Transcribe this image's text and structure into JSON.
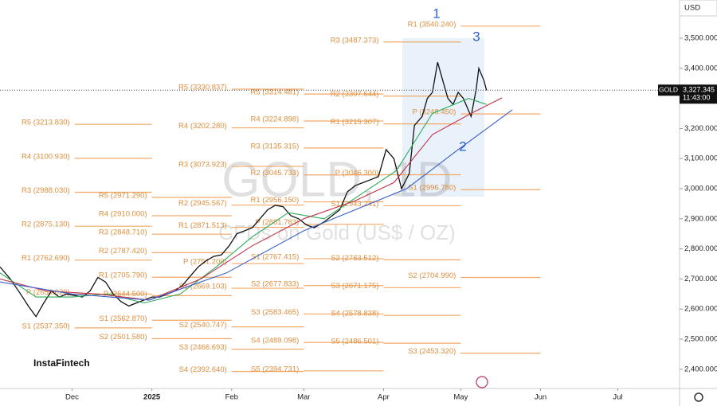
{
  "chart_data": {
    "type": "line",
    "title": "GOLD, 1D",
    "subtitle": "CFDs on Gold (US$ / OZ)",
    "currency": "USD",
    "brand": "InstaFintech",
    "symbol": "GOLD",
    "last_price": {
      "value": 3327.345,
      "label": "3,327.345"
    },
    "countdown": "11:43:00",
    "annotations": [
      "1",
      "2",
      "3"
    ],
    "xlim": [
      -28,
      236
    ],
    "ylim": [
      2336,
      3627
    ],
    "xticks": [
      {
        "value": 0,
        "label": "Dec"
      },
      {
        "value": 31,
        "label": "2025"
      },
      {
        "value": 62,
        "label": "Feb"
      },
      {
        "value": 90,
        "label": "Mar"
      },
      {
        "value": 121,
        "label": "Apr"
      },
      {
        "value": 151,
        "label": "May"
      },
      {
        "value": 182,
        "label": "Jun"
      },
      {
        "value": 212,
        "label": "Jul"
      }
    ],
    "yticks": [
      {
        "value": 2400,
        "label": "2,400.000"
      },
      {
        "value": 2500,
        "label": "2,500.000"
      },
      {
        "value": 2600,
        "label": "2,600.000"
      },
      {
        "value": 2700,
        "label": "2,700.000"
      },
      {
        "value": 2800,
        "label": "2,800.000"
      },
      {
        "value": 2900,
        "label": "2,900.000"
      },
      {
        "value": 3000,
        "label": "3,000.000"
      },
      {
        "value": 3100,
        "label": "3,100.000"
      },
      {
        "value": 3200,
        "label": "3,200.000"
      },
      {
        "value": 3300,
        "label": "3,300.000"
      },
      {
        "value": 3400,
        "label": "3,400.000"
      },
      {
        "value": 3500,
        "label": "3,500.000"
      }
    ],
    "series": [
      {
        "color": "#111111",
        "x": [
          -28,
          -24,
          -20,
          -17,
          -14,
          -11,
          -8,
          -5,
          -2,
          1,
          4,
          7,
          10,
          13,
          16,
          19,
          22,
          25,
          28,
          31,
          34,
          37,
          40,
          43,
          46,
          49,
          52,
          55,
          58,
          61,
          64,
          67,
          70,
          73,
          76,
          79,
          82,
          85,
          88,
          91,
          94,
          98,
          101,
          104,
          107,
          110,
          113,
          116,
          119,
          122,
          125,
          128,
          131,
          133,
          136,
          138,
          140,
          142,
          144,
          146,
          148,
          150,
          152,
          155,
          157,
          158,
          160,
          161
        ],
        "values": [
          2740,
          2700,
          2650,
          2610,
          2575,
          2620,
          2660,
          2640,
          2650,
          2645,
          2640,
          2660,
          2705,
          2690,
          2650,
          2625,
          2610,
          2620,
          2630,
          2640,
          2640,
          2650,
          2660,
          2680,
          2710,
          2740,
          2760,
          2775,
          2780,
          2810,
          2850,
          2860,
          2870,
          2900,
          2930,
          2945,
          2940,
          2910,
          2900,
          2880,
          2870,
          2890,
          2910,
          2930,
          2990,
          3010,
          3020,
          3030,
          3040,
          3130,
          3100,
          3000,
          3050,
          3210,
          3240,
          3300,
          3320,
          3420,
          3360,
          3300,
          3280,
          3320,
          3300,
          3240,
          3330,
          3400,
          3360,
          3327
        ]
      },
      {
        "color": "#2eaa5a",
        "x": [
          -28,
          -14,
          0,
          14,
          28,
          42,
          56,
          70,
          84,
          98,
          112,
          126,
          140,
          154,
          161
        ],
        "values": [
          2720,
          2640,
          2640,
          2650,
          2620,
          2650,
          2740,
          2840,
          2920,
          2900,
          2980,
          3060,
          3250,
          3300,
          3280
        ]
      },
      {
        "color": "#c2334a",
        "x": [
          -28,
          -10,
          10,
          30,
          50,
          70,
          90,
          110,
          125,
          140,
          155,
          167
        ],
        "values": [
          2700,
          2660,
          2650,
          2630,
          2700,
          2810,
          2900,
          2960,
          3020,
          3180,
          3250,
          3302
        ]
      },
      {
        "color": "#3a5fc8",
        "x": [
          -28,
          0,
          30,
          60,
          90,
          110,
          130,
          150,
          171
        ],
        "values": [
          2690,
          2650,
          2630,
          2720,
          2860,
          2930,
          3000,
          3130,
          3262
        ]
      }
    ],
    "pivot_groups": [
      {
        "start": 1,
        "end": 31,
        "levels": [
          {
            "label": "R5 (3213.830)",
            "value": 3213.83
          },
          {
            "label": "R4 (3100.930)",
            "value": 3100.93
          },
          {
            "label": "R3 (2988.030)",
            "value": 2988.03
          },
          {
            "label": "R2 (2875.130)",
            "value": 2875.13
          },
          {
            "label": "R1 (2762.690)",
            "value": 2762.69
          },
          {
            "label": "P (2650.020)",
            "value": 2650.02
          },
          {
            "label": "S1 (2537.350)",
            "value": 2537.35
          }
        ]
      },
      {
        "start": 31,
        "end": 62,
        "levels": [
          {
            "label": "R5 (2971.290)",
            "value": 2971.29
          },
          {
            "label": "R4 (2910.000)",
            "value": 2910.0
          },
          {
            "label": "R3 (2848.710)",
            "value": 2848.71
          },
          {
            "label": "R2 (2787.420)",
            "value": 2787.42
          },
          {
            "label": "R1 (2705.790)",
            "value": 2705.79
          },
          {
            "label": "P (2644.500)",
            "value": 2644.5
          },
          {
            "label": "S1 (2562.870)",
            "value": 2562.87
          },
          {
            "label": "S2 (2501.580)",
            "value": 2501.58
          }
        ]
      },
      {
        "start": 62,
        "end": 90,
        "levels": [
          {
            "label": "R5 (3330.837)",
            "value": 3330.837
          },
          {
            "label": "R4 (3202.280)",
            "value": 3202.28
          },
          {
            "label": "R3 (3073.923)",
            "value": 3073.923
          },
          {
            "label": "R2 (2945.567)",
            "value": 2945.567
          },
          {
            "label": "R1 (2871.513)",
            "value": 2871.513
          },
          {
            "label": "P (2751.200)",
            "value": 2751.2
          },
          {
            "label": "S1 (2669.103)",
            "value": 2669.103
          },
          {
            "label": "S2 (2540.747)",
            "value": 2540.747
          },
          {
            "label": "S3 (2466.693)",
            "value": 2466.693
          },
          {
            "label": "S4 (2392.640)",
            "value": 2392.64
          }
        ]
      },
      {
        "start": 90,
        "end": 121,
        "levels": [
          {
            "label": "R5 (3314.481)",
            "value": 3314.481
          },
          {
            "label": "R4 (3224.898)",
            "value": 3224.898
          },
          {
            "label": "R3 (3135.315)",
            "value": 3135.315
          },
          {
            "label": "R2 (3045.733)",
            "value": 3045.733
          },
          {
            "label": "R1 (2956.150)",
            "value": 2956.15
          },
          {
            "label": "P (2881.783)",
            "value": 2881.783
          },
          {
            "label": "S1 (2767.415)",
            "value": 2767.415
          },
          {
            "label": "S2 (2677.833)",
            "value": 2677.833
          },
          {
            "label": "S3 (2583.465)",
            "value": 2583.465
          },
          {
            "label": "S4 (2489.098)",
            "value": 2489.098
          },
          {
            "label": "S5 (2394.731)",
            "value": 2394.731
          }
        ]
      },
      {
        "start": 121,
        "end": 151,
        "levels": [
          {
            "label": "R3 (3487.373)",
            "value": 3487.373
          },
          {
            "label": "R2 (3307.644)",
            "value": 3307.644
          },
          {
            "label": "R1 (3215.307)",
            "value": 3215.307
          },
          {
            "label": "P (3046.300)",
            "value": 3046.3
          },
          {
            "label": "S1 (2943.241)",
            "value": 2943.241
          },
          {
            "label": "S2 (2763.512)",
            "value": 2763.512
          },
          {
            "label": "S3 (2671.175)",
            "value": 2671.175
          },
          {
            "label": "S4 (2578.838)",
            "value": 2578.838
          },
          {
            "label": "S5 (2486.501)",
            "value": 2486.501
          }
        ]
      },
      {
        "start": 151,
        "end": 182,
        "levels": [
          {
            "label": "R1 (3540.240)",
            "value": 3540.24
          },
          {
            "label": "P (3248.450)",
            "value": 3248.45
          },
          {
            "label": "S1 (2996.780)",
            "value": 2996.78
          },
          {
            "label": "S2 (2704.990)",
            "value": 2704.99
          },
          {
            "label": "S3 (2453.320)",
            "value": 2453.32
          }
        ]
      }
    ]
  }
}
